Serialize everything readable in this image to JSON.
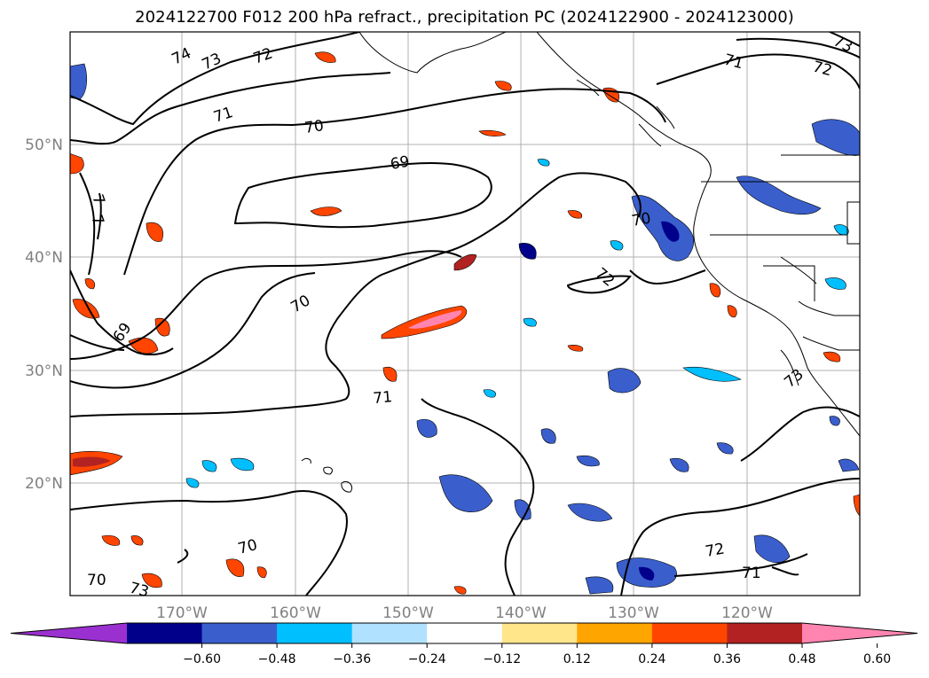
{
  "title": "2024122700 F012 200 hPa refract., precipitation PC (2024122900 - 2024123000)",
  "lon_ticks": [
    "170°W",
    "160°W",
    "150°W",
    "140°W",
    "130°W",
    "120°W"
  ],
  "lat_ticks": [
    "50°N",
    "40°N",
    "30°N",
    "20°N"
  ],
  "contour_labels": [
    "74",
    "73",
    "72",
    "71",
    "70",
    "69",
    "69",
    "70",
    "71",
    "70",
    "72",
    "71",
    "72",
    "73",
    "73",
    "72",
    "71",
    "70",
    "70",
    "73",
    "7",
    "7"
  ],
  "colorbar": {
    "ticks": [
      "−0.60",
      "−0.48",
      "−0.36",
      "−0.24",
      "−0.12",
      "0.12",
      "0.24",
      "0.36",
      "0.48",
      "0.60"
    ],
    "colors": [
      "#9b30d0",
      "#00008b",
      "#3a5fcd",
      "#00bfff",
      "#b0e2ff",
      "#ffffff",
      "#ffe68a",
      "#ffa500",
      "#ff4500",
      "#b22222",
      "#ff85b0"
    ]
  }
}
